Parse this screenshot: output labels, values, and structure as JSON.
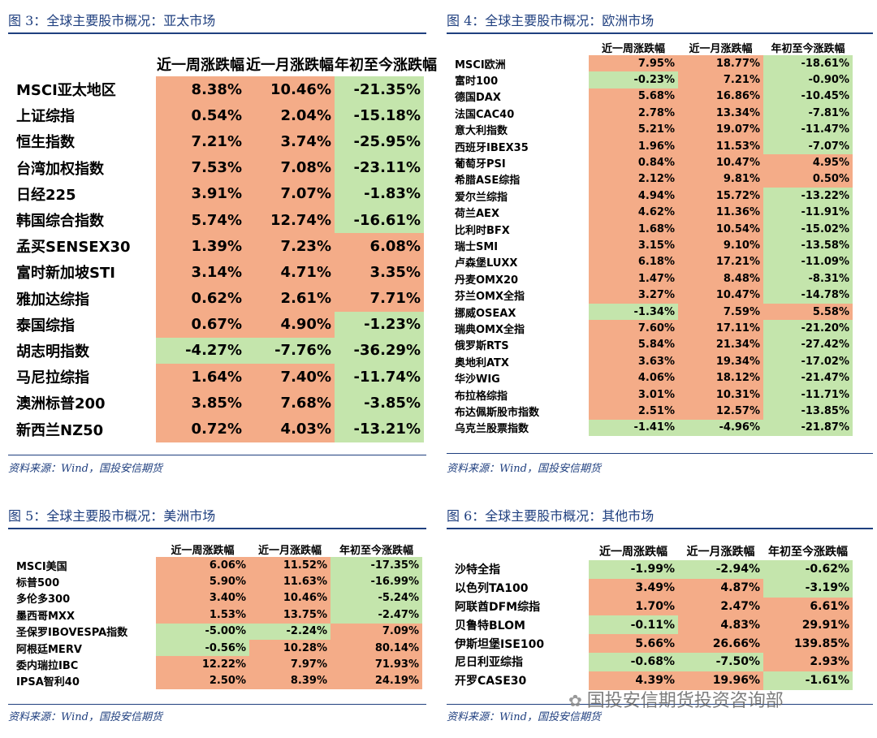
{
  "headers": [
    "近一周涨跌幅",
    "近一月涨跌幅",
    "年初至今涨跌幅"
  ],
  "source_text": "资料来源：Wind，国投安信期货",
  "colors": {
    "positive": "#f4ac88",
    "negative": "#c4e5ac",
    "title": "#1f3f7f"
  },
  "watermark": {
    "icon": "wechat-icon",
    "text": "国投安信期货投资咨询部"
  },
  "panels": [
    {
      "title": "图 3：全球主要股市概况：亚太市场",
      "rows": [
        {
          "name": "MSCI亚太地区",
          "week": "8.38%",
          "month": "10.46%",
          "ytd": "-21.35%"
        },
        {
          "name": "上证综指",
          "week": "0.54%",
          "month": "2.04%",
          "ytd": "-15.18%"
        },
        {
          "name": "恒生指数",
          "week": "7.21%",
          "month": "3.74%",
          "ytd": "-25.95%"
        },
        {
          "name": "台湾加权指数",
          "week": "7.53%",
          "month": "7.08%",
          "ytd": "-23.11%"
        },
        {
          "name": "日经225",
          "week": "3.91%",
          "month": "7.07%",
          "ytd": "-1.83%"
        },
        {
          "name": "韩国综合指数",
          "week": "5.74%",
          "month": "12.74%",
          "ytd": "-16.61%"
        },
        {
          "name": "孟买SENSEX30",
          "week": "1.39%",
          "month": "7.23%",
          "ytd": "6.08%"
        },
        {
          "name": "富时新加坡STI",
          "week": "3.14%",
          "month": "4.71%",
          "ytd": "3.35%"
        },
        {
          "name": "雅加达综指",
          "week": "0.62%",
          "month": "2.61%",
          "ytd": "7.71%"
        },
        {
          "name": "泰国综指",
          "week": "0.67%",
          "month": "4.90%",
          "ytd": "-1.23%"
        },
        {
          "name": "胡志明指数",
          "week": "-4.27%",
          "month": "-7.76%",
          "ytd": "-36.29%"
        },
        {
          "name": "马尼拉综指",
          "week": "1.64%",
          "month": "7.40%",
          "ytd": "-11.74%"
        },
        {
          "name": "澳洲标普200",
          "week": "3.85%",
          "month": "7.68%",
          "ytd": "-3.85%"
        },
        {
          "name": "新西兰NZ50",
          "week": "0.72%",
          "month": "4.03%",
          "ytd": "-13.21%"
        }
      ]
    },
    {
      "title": "图 4：全球主要股市概况：欧洲市场",
      "rows": [
        {
          "name": "MSCI欧洲",
          "week": "7.95%",
          "month": "18.77%",
          "ytd": "-18.61%"
        },
        {
          "name": "富时100",
          "week": "-0.23%",
          "month": "7.21%",
          "ytd": "-0.90%"
        },
        {
          "name": "德国DAX",
          "week": "5.68%",
          "month": "16.86%",
          "ytd": "-10.45%"
        },
        {
          "name": "法国CAC40",
          "week": "2.78%",
          "month": "13.34%",
          "ytd": "-7.81%"
        },
        {
          "name": "意大利指数",
          "week": "5.21%",
          "month": "19.07%",
          "ytd": "-11.47%"
        },
        {
          "name": "西班牙IBEX35",
          "week": "1.96%",
          "month": "11.53%",
          "ytd": "-7.07%"
        },
        {
          "name": "葡萄牙PSI",
          "week": "0.84%",
          "month": "10.47%",
          "ytd": "4.95%"
        },
        {
          "name": "希腊ASE综指",
          "week": "2.12%",
          "month": "9.81%",
          "ytd": "0.50%"
        },
        {
          "name": "爱尔兰综指",
          "week": "4.94%",
          "month": "15.72%",
          "ytd": "-13.22%"
        },
        {
          "name": "荷兰AEX",
          "week": "4.62%",
          "month": "11.36%",
          "ytd": "-11.91%"
        },
        {
          "name": "比利时BFX",
          "week": "1.68%",
          "month": "10.54%",
          "ytd": "-15.02%"
        },
        {
          "name": "瑞士SMI",
          "week": "3.15%",
          "month": "9.10%",
          "ytd": "-13.58%"
        },
        {
          "name": "卢森堡LUXX",
          "week": "6.18%",
          "month": "17.21%",
          "ytd": "-11.09%"
        },
        {
          "name": "丹麦OMX20",
          "week": "1.47%",
          "month": "8.48%",
          "ytd": "-8.31%"
        },
        {
          "name": "芬兰OMX全指",
          "week": "3.27%",
          "month": "10.47%",
          "ytd": "-14.78%"
        },
        {
          "name": "挪威OSEAX",
          "week": "-1.34%",
          "month": "7.59%",
          "ytd": "5.58%"
        },
        {
          "name": "瑞典OMX全指",
          "week": "7.60%",
          "month": "17.11%",
          "ytd": "-21.20%"
        },
        {
          "name": "俄罗斯RTS",
          "week": "5.84%",
          "month": "21.34%",
          "ytd": "-27.42%"
        },
        {
          "name": "奥地利ATX",
          "week": "3.63%",
          "month": "19.34%",
          "ytd": "-17.02%"
        },
        {
          "name": "华沙WIG",
          "week": "4.06%",
          "month": "18.12%",
          "ytd": "-21.47%"
        },
        {
          "name": "布拉格综指",
          "week": "3.01%",
          "month": "10.31%",
          "ytd": "-11.71%"
        },
        {
          "name": "布达佩斯股市指数",
          "week": "2.51%",
          "month": "12.57%",
          "ytd": "-13.85%"
        },
        {
          "name": "乌克兰股票指数",
          "week": "-1.41%",
          "month": "-4.96%",
          "ytd": "-21.87%"
        }
      ]
    },
    {
      "title": "图 5：全球主要股市概况：美洲市场",
      "rows": [
        {
          "name": "MSCI美国",
          "week": "6.06%",
          "month": "11.52%",
          "ytd": "-17.35%"
        },
        {
          "name": "标普500",
          "week": "5.90%",
          "month": "11.63%",
          "ytd": "-16.99%"
        },
        {
          "name": "多伦多300",
          "week": "3.40%",
          "month": "10.46%",
          "ytd": "-5.24%"
        },
        {
          "name": "墨西哥MXX",
          "week": "1.53%",
          "month": "13.75%",
          "ytd": "-2.47%"
        },
        {
          "name": "圣保罗IBOVESPA指数",
          "week": "-5.00%",
          "month": "-2.24%",
          "ytd": "7.09%"
        },
        {
          "name": "阿根廷MERV",
          "week": "-0.56%",
          "month": "10.28%",
          "ytd": "80.14%"
        },
        {
          "name": "委内瑞拉IBC",
          "week": "12.22%",
          "month": "7.97%",
          "ytd": "71.93%"
        },
        {
          "name": "IPSA智利40",
          "week": "2.50%",
          "month": "8.39%",
          "ytd": "24.19%"
        }
      ]
    },
    {
      "title": "图 6：全球主要股市概况：其他市场",
      "rows": [
        {
          "name": "沙特全指",
          "week": "-1.99%",
          "month": "-2.94%",
          "ytd": "-0.62%"
        },
        {
          "name": "以色列TA100",
          "week": "3.49%",
          "month": "4.87%",
          "ytd": "-3.19%"
        },
        {
          "name": "阿联酋DFM综指",
          "week": "1.70%",
          "month": "2.47%",
          "ytd": "6.61%"
        },
        {
          "name": "贝鲁特BLOM",
          "week": "-0.11%",
          "month": "4.83%",
          "ytd": "29.91%"
        },
        {
          "name": "伊斯坦堡ISE100",
          "week": "5.66%",
          "month": "26.66%",
          "ytd": "139.85%"
        },
        {
          "name": "尼日利亚综指",
          "week": "-0.68%",
          "month": "-7.50%",
          "ytd": "2.93%"
        },
        {
          "name": "开罗CASE30",
          "week": "4.39%",
          "month": "19.96%",
          "ytd": "-1.61%"
        }
      ]
    }
  ]
}
